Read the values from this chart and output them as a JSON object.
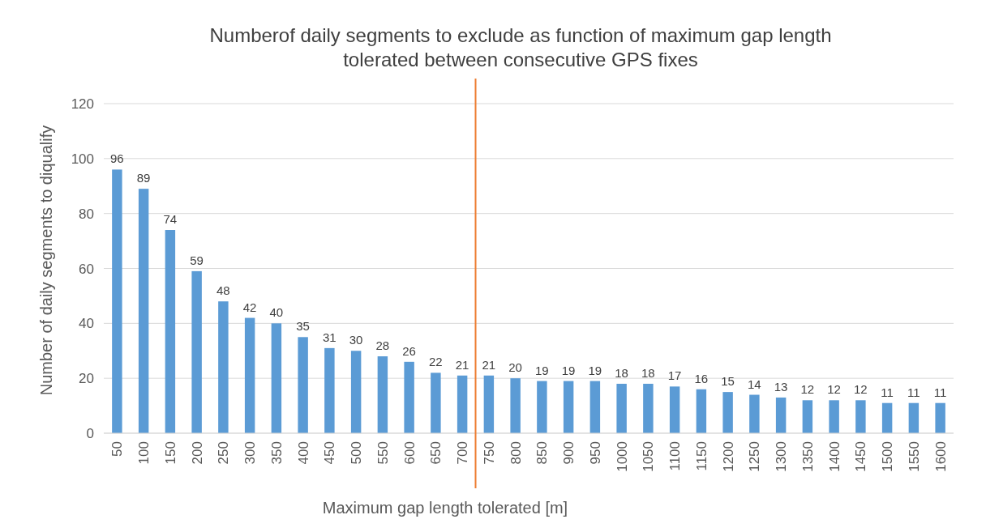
{
  "chart_data": {
    "type": "bar",
    "title": "Numberof daily segments to exclude as function of maximum gap length tolerated between consecutive GPS fixes",
    "xlabel": "Maximum gap length tolerated [m]",
    "ylabel": "Number of daily segments to diqualify",
    "categories": [
      "50",
      "100",
      "150",
      "200",
      "250",
      "300",
      "350",
      "400",
      "450",
      "500",
      "550",
      "600",
      "650",
      "700",
      "750",
      "800",
      "850",
      "900",
      "950",
      "1000",
      "1050",
      "1100",
      "1150",
      "1200",
      "1250",
      "1300",
      "1350",
      "1400",
      "1450",
      "1500",
      "1550",
      "1600"
    ],
    "values": [
      96,
      89,
      74,
      59,
      48,
      42,
      40,
      35,
      31,
      30,
      28,
      26,
      22,
      21,
      21,
      20,
      19,
      19,
      19,
      18,
      18,
      17,
      16,
      15,
      14,
      13,
      12,
      12,
      12,
      11,
      11,
      11
    ],
    "color": "#5b9bd5",
    "ylim": [
      0,
      120
    ],
    "yticks": [
      0,
      20,
      40,
      60,
      80,
      100,
      120
    ],
    "grid": "y",
    "data_labels": true,
    "ref_lines": [
      {
        "axis": "x",
        "value": "750",
        "color": "#ed7d31"
      }
    ]
  }
}
